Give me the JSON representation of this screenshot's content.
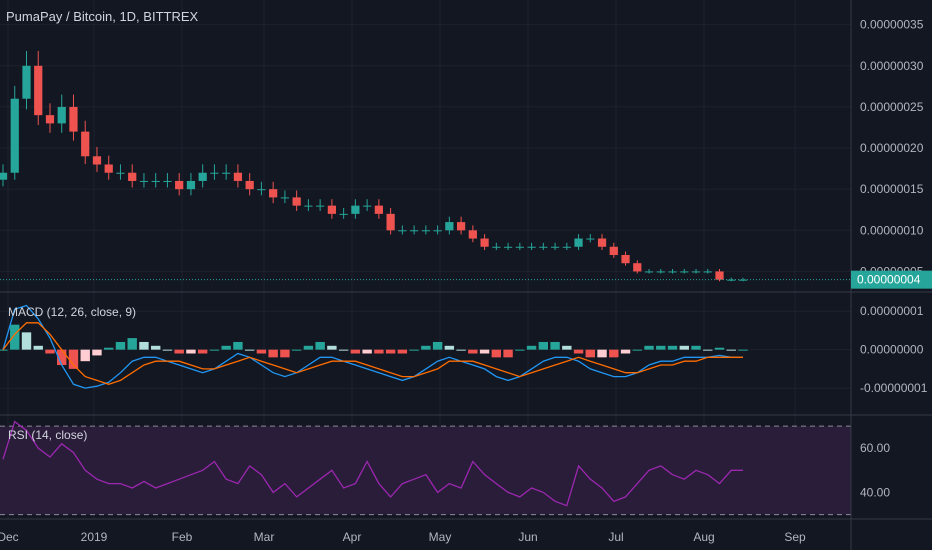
{
  "header": {
    "symbol_title": "PumaPay / Bitcoin, 1D, BITTREX"
  },
  "colors": {
    "background": "#131722",
    "grid": "#1e222d",
    "pane_border": "#363a45",
    "text": "#b2b5be",
    "up": "#26a69a",
    "down": "#ef5350",
    "macd_line": "#2196f3",
    "signal_line": "#ff6d00",
    "hist_up_strong": "#26a69a",
    "hist_up_weak": "#b2dfdb",
    "hist_down_strong": "#ef5350",
    "hist_down_weak": "#ffcdd2",
    "rsi_line": "#9c27b0",
    "rsi_band": "#2a1d3a",
    "last_price_bg": "#26a69a"
  },
  "chart_data": [
    {
      "type": "candlestick",
      "title": "PumaPay / Bitcoin, 1D, BITTREX",
      "x_tick_labels": [
        "Dec",
        "2019",
        "Feb",
        "Mar",
        "Apr",
        "May",
        "Jun",
        "Jul",
        "Aug",
        "Sep"
      ],
      "y_tick_labels": [
        "0.00000035",
        "0.00000030",
        "0.00000025",
        "0.00000020",
        "0.00000015",
        "0.00000010",
        "0.00000005"
      ],
      "y_ticks": [
        3.5e-07,
        3e-07,
        2.5e-07,
        2e-07,
        1.5e-07,
        1e-07,
        5e-08
      ],
      "ylim": [
        2.5e-08,
        3.8e-07
      ],
      "last_price_label": "0.00000004",
      "last_price": 4e-08,
      "close_series": [
        1.7e-07,
        2.6e-07,
        3e-07,
        2.4e-07,
        2.3e-07,
        2.5e-07,
        2.2e-07,
        1.9e-07,
        1.8e-07,
        1.7e-07,
        1.7e-07,
        1.6e-07,
        1.6e-07,
        1.6e-07,
        1.6e-07,
        1.5e-07,
        1.6e-07,
        1.7e-07,
        1.7e-07,
        1.7e-07,
        1.6e-07,
        1.5e-07,
        1.5e-07,
        1.4e-07,
        1.4e-07,
        1.3e-07,
        1.3e-07,
        1.3e-07,
        1.2e-07,
        1.2e-07,
        1.3e-07,
        1.3e-07,
        1.2e-07,
        1e-07,
        1e-07,
        1e-07,
        1e-07,
        1e-07,
        1.1e-07,
        1e-07,
        9e-08,
        8e-08,
        8e-08,
        8e-08,
        8e-08,
        8e-08,
        8e-08,
        8e-08,
        8e-08,
        9e-08,
        9e-08,
        8e-08,
        7e-08,
        6e-08,
        5e-08,
        5e-08,
        5e-08,
        5e-08,
        5e-08,
        5e-08,
        5e-08,
        4e-08,
        4e-08,
        4e-08
      ]
    },
    {
      "type": "line",
      "title": "MACD (12, 26, close, 9)",
      "y_tick_labels": [
        "0.00000001",
        "0.00000000",
        "-0.00000001"
      ],
      "y_ticks": [
        1e-08,
        0.0,
        -1e-08
      ],
      "ylim": [
        -1.7e-08,
        1.5e-08
      ],
      "series": [
        {
          "values": [
            0.0,
            1.05e-08,
            1.15e-08,
            8e-09,
            3e-09,
            -4e-09,
            -9e-09,
            -1e-08,
            -9.5e-09,
            -8.5e-09,
            -6e-09,
            -3e-09,
            -2e-09,
            -2e-09,
            -3e-09,
            -4e-09,
            -5e-09,
            -6e-09,
            -5e-09,
            -3e-09,
            -1e-09,
            -2e-09,
            -4e-09,
            -6e-09,
            -7e-09,
            -6e-09,
            -4e-09,
            -2e-09,
            -2e-09,
            -3e-09,
            -4e-09,
            -5e-09,
            -6e-09,
            -7e-09,
            -8e-09,
            -7e-09,
            -5e-09,
            -3e-09,
            -2e-09,
            -3e-09,
            -4e-09,
            -5e-09,
            -7e-09,
            -8e-09,
            -7e-09,
            -5e-09,
            -3e-09,
            -2e-09,
            -2e-09,
            -3e-09,
            -5e-09,
            -6e-09,
            -7e-09,
            -7e-09,
            -6e-09,
            -4e-09,
            -3e-09,
            -3e-09,
            -2e-09,
            -2e-09,
            -2e-09,
            -1.5e-09,
            -2e-09,
            -2e-09
          ]
        },
        {
          "values": [
            0.0,
            4e-09,
            7e-09,
            7e-09,
            4e-09,
            0.0,
            -4e-09,
            -7e-09,
            -8e-09,
            -9e-09,
            -8e-09,
            -6e-09,
            -4e-09,
            -3e-09,
            -3e-09,
            -3e-09,
            -4e-09,
            -5e-09,
            -5e-09,
            -4e-09,
            -3e-09,
            -2e-09,
            -3e-09,
            -4e-09,
            -5e-09,
            -6e-09,
            -5e-09,
            -4e-09,
            -3e-09,
            -3e-09,
            -3e-09,
            -4e-09,
            -5e-09,
            -6e-09,
            -7e-09,
            -7e-09,
            -6e-09,
            -5e-09,
            -3e-09,
            -3e-09,
            -3e-09,
            -4e-09,
            -5e-09,
            -6e-09,
            -7e-09,
            -6e-09,
            -5e-09,
            -4e-09,
            -3e-09,
            -2e-09,
            -3e-09,
            -4e-09,
            -5e-09,
            -6e-09,
            -6e-09,
            -5e-09,
            -4e-09,
            -4e-09,
            -3e-09,
            -3e-09,
            -2e-09,
            -2e-09,
            -2e-09,
            -2e-09
          ]
        }
      ]
    },
    {
      "type": "line",
      "title": "RSI (14, close)",
      "y_tick_labels": [
        "60.00",
        "40.00"
      ],
      "y_ticks": [
        60,
        40
      ],
      "ylim": [
        28,
        75
      ],
      "bands": [
        70,
        30
      ],
      "series": [
        {
          "values": [
            55,
            72,
            68,
            60,
            56,
            62,
            58,
            50,
            46,
            44,
            44,
            42,
            45,
            42,
            44,
            46,
            48,
            50,
            54,
            46,
            44,
            52,
            48,
            40,
            44,
            38,
            42,
            46,
            50,
            42,
            44,
            54,
            44,
            38,
            44,
            46,
            48,
            40,
            44,
            42,
            54,
            48,
            44,
            40,
            38,
            42,
            40,
            36,
            34,
            52,
            46,
            42,
            36,
            38,
            44,
            50,
            52,
            48,
            46,
            50,
            48,
            44,
            50,
            50
          ]
        }
      ]
    }
  ]
}
